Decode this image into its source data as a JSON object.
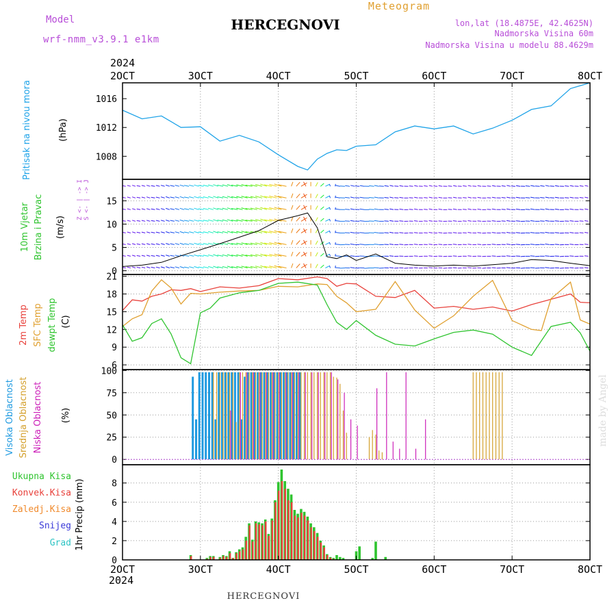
{
  "header": {
    "title": "HERCEGNOVI",
    "subtitle": "Meteogram",
    "model_label": "Model",
    "model_value": "wrf-nmm_v3.9.1 e1km",
    "location": "lon,lat (18.4875E, 42.4625N)",
    "altitude": "Nadmorska Visina 60m",
    "model_altitude": "Nadmorska Visina u modelu 88.4629m",
    "footer_title": "HERCEGNOVI",
    "watermark": "made by Angel"
  },
  "colors": {
    "pressure": "#1fa3e8",
    "temp2m": "#e8413b",
    "sfc": "#e0a030",
    "dew": "#2fc42f",
    "high": "#1f9ae0",
    "mid": "#d4a02c",
    "low": "#cc1fb8",
    "total": "#2fc42f",
    "conv": "#e8413b",
    "freezing": "#f08a2c",
    "snow": "#3a3ad8",
    "grad": "#2ec4c4",
    "purple": "#b84ed8"
  },
  "chart_data": [
    {
      "type": "line",
      "title": "Pritisak na nivou mora",
      "ylabel": "(hPa)",
      "ylim": [
        1004.8,
        1018.2
      ],
      "yticks": [
        1008,
        1012,
        1016
      ],
      "x_start": "2024-10-02T00",
      "x_end": "2024-10-08T00",
      "x_ticks": [
        "2OCT",
        "3OCT",
        "4OCT",
        "5OCT",
        "6OCT",
        "7OCT",
        "8OCT"
      ],
      "x_year": "2024",
      "series": [
        {
          "name": "Pritisak na nivou mora",
          "x_hours": [
            0,
            6,
            12,
            18,
            24,
            30,
            36,
            42,
            48,
            54,
            57,
            60,
            63,
            66,
            69,
            72,
            78,
            84,
            90,
            96,
            102,
            108,
            114,
            120,
            126,
            132,
            138,
            144
          ],
          "values": [
            1014.4,
            1013.2,
            1013.6,
            1012.0,
            1012.1,
            1010.1,
            1010.9,
            1010.0,
            1008.2,
            1006.6,
            1006.1,
            1007.6,
            1008.4,
            1008.9,
            1008.8,
            1009.4,
            1009.6,
            1011.4,
            1012.2,
            1011.8,
            1012.2,
            1011.1,
            1011.9,
            1013.0,
            1014.5,
            1015.0,
            1017.4,
            1018.2
          ]
        }
      ]
    },
    {
      "type": "line",
      "title": "10m Vjetar Brzina i Pravac",
      "ylabel": "(m/s)",
      "ylim": [
        -0.8,
        19.6
      ],
      "yticks": [
        0,
        5,
        10,
        15
      ],
      "direction_key": [
        "Z",
        "<-",
        "|",
        "->",
        "I"
      ],
      "direction_key_2": [
        "S",
        "<-",
        "|",
        "->",
        "J"
      ],
      "series": [
        {
          "name": "10m Vjetar Brzina",
          "x_hours": [
            0,
            6,
            12,
            18,
            24,
            30,
            36,
            42,
            48,
            54,
            57,
            60,
            63,
            66,
            69,
            72,
            78,
            84,
            90,
            96,
            102,
            108,
            114,
            120,
            126,
            132,
            138,
            144
          ],
          "values": [
            0.9,
            1.2,
            1.8,
            3.2,
            4.5,
            5.8,
            7.2,
            8.6,
            10.8,
            11.8,
            12.4,
            9.2,
            3.0,
            2.6,
            3.4,
            2.2,
            3.6,
            1.6,
            1.2,
            1.0,
            1.2,
            1.0,
            1.3,
            1.6,
            2.4,
            2.2,
            1.6,
            1.1
          ]
        }
      ]
    },
    {
      "type": "line",
      "title": "2m Temp / SFC Temp / dewpt Temp",
      "ylabel": "(C)",
      "ylim": [
        5.2,
        21.3
      ],
      "yticks": [
        6,
        9,
        12,
        15,
        18,
        21
      ],
      "series": [
        {
          "name": "2m Temp",
          "x_hours": [
            0,
            3,
            6,
            9,
            12,
            15,
            18,
            21,
            24,
            30,
            36,
            42,
            48,
            54,
            60,
            63,
            66,
            69,
            72,
            78,
            84,
            90,
            96,
            102,
            108,
            114,
            120,
            126,
            132,
            138,
            141,
            144
          ],
          "values": [
            15.2,
            17.0,
            16.8,
            17.6,
            18.0,
            18.7,
            18.6,
            18.9,
            18.4,
            19.2,
            19.0,
            19.4,
            20.6,
            20.4,
            20.9,
            20.6,
            19.3,
            19.8,
            19.7,
            17.6,
            17.4,
            18.6,
            15.6,
            15.9,
            15.4,
            15.8,
            15.1,
            16.2,
            17.1,
            18.0,
            16.6,
            16.5
          ]
        },
        {
          "name": "SFC Temp",
          "x_hours": [
            0,
            3,
            6,
            9,
            12,
            15,
            18,
            21,
            24,
            30,
            36,
            42,
            48,
            54,
            60,
            63,
            66,
            69,
            72,
            78,
            84,
            90,
            96,
            102,
            108,
            114,
            120,
            126,
            129,
            132,
            138,
            141,
            144
          ],
          "values": [
            12.5,
            13.8,
            14.5,
            18.5,
            20.4,
            19.0,
            16.3,
            18.1,
            18.0,
            18.3,
            18.5,
            18.6,
            19.3,
            19.2,
            19.7,
            19.6,
            17.6,
            16.5,
            15.0,
            15.4,
            20.1,
            15.3,
            12.2,
            14.3,
            17.6,
            20.3,
            13.5,
            12.0,
            11.8,
            17.2,
            20.0,
            13.6,
            12.9
          ]
        },
        {
          "name": "dewpt Temp",
          "x_hours": [
            0,
            3,
            6,
            9,
            12,
            15,
            18,
            21,
            24,
            27,
            30,
            36,
            42,
            48,
            54,
            60,
            63,
            66,
            69,
            72,
            78,
            84,
            90,
            96,
            102,
            108,
            114,
            120,
            126,
            132,
            138,
            141,
            144
          ],
          "values": [
            12.8,
            10.0,
            10.6,
            13.0,
            13.8,
            11.2,
            7.2,
            6.2,
            14.8,
            15.6,
            17.3,
            18.2,
            18.6,
            19.8,
            20.0,
            19.5,
            16.2,
            13.2,
            12.0,
            13.5,
            11.0,
            9.5,
            9.2,
            10.4,
            11.5,
            11.9,
            11.2,
            9.0,
            7.6,
            12.5,
            13.2,
            11.4,
            8.3
          ]
        }
      ]
    },
    {
      "type": "bar",
      "title": "Visoka / Srednja / Niska Oblacnost",
      "ylabel": "(%)",
      "ylim": [
        -6,
        101
      ],
      "yticks": [
        0,
        25,
        50,
        75,
        100
      ],
      "series": [
        {
          "name": "Visoka Oblacnost",
          "x_hours": [
            22,
            23,
            24,
            25,
            26,
            27,
            28,
            29,
            30,
            31,
            32,
            33,
            34,
            35,
            36,
            37,
            38,
            39,
            40,
            41,
            42,
            43,
            44,
            45,
            46,
            47,
            48,
            49,
            50,
            51,
            52,
            53,
            54,
            55
          ],
          "values": [
            93,
            45,
            98,
            98,
            98,
            98,
            98,
            45,
            98,
            98,
            98,
            98,
            98,
            98,
            98,
            45,
            93,
            98,
            98,
            98,
            98,
            98,
            98,
            98,
            98,
            98,
            98,
            98,
            98,
            98,
            98,
            98,
            98,
            98
          ]
        },
        {
          "name": "Srednja Oblacnost",
          "x_hours": [
            28,
            29,
            30,
            31,
            32,
            33,
            34,
            35,
            36,
            37,
            38,
            39,
            40,
            41,
            42,
            43,
            44,
            45,
            46,
            47,
            48,
            49,
            50,
            51,
            52,
            53,
            54,
            55,
            56,
            57,
            58,
            59,
            60,
            61,
            62,
            63,
            64,
            65,
            66,
            67,
            68,
            69,
            76,
            77,
            78,
            79,
            80,
            108,
            109,
            110,
            111,
            112,
            113,
            114,
            115,
            116,
            117
          ],
          "values": [
            98,
            98,
            98,
            98,
            98,
            98,
            98,
            42,
            98,
            98,
            98,
            98,
            98,
            98,
            98,
            98,
            98,
            98,
            98,
            98,
            98,
            98,
            98,
            98,
            98,
            98,
            98,
            98,
            98,
            98,
            98,
            98,
            98,
            98,
            98,
            98,
            98,
            93,
            92,
            85,
            55,
            30,
            25,
            33,
            28,
            10,
            8,
            98,
            98,
            98,
            98,
            98,
            98,
            98,
            98,
            98,
            98
          ]
        },
        {
          "name": "Niska Oblacnost",
          "x_hours": [
            33,
            36,
            38,
            40,
            42,
            44,
            46,
            48,
            50,
            52,
            54,
            56,
            58,
            60,
            62,
            64,
            66,
            68,
            70,
            72,
            78,
            81,
            83,
            85,
            87,
            90,
            93
          ],
          "values": [
            55,
            98,
            98,
            98,
            98,
            98,
            98,
            98,
            98,
            98,
            98,
            98,
            98,
            98,
            98,
            98,
            90,
            75,
            45,
            38,
            80,
            98,
            20,
            12,
            98,
            12,
            45
          ]
        }
      ]
    },
    {
      "type": "bar",
      "title": "1hr Precip",
      "ylabel": "1hr Precip (mm)",
      "ylim": [
        0,
        9.9
      ],
      "yticks": [
        0,
        2,
        4,
        6,
        8
      ],
      "series": [
        {
          "name": "Ukupna Kisa",
          "x_hours": [
            21,
            26,
            27,
            28,
            30,
            31,
            32,
            33,
            34,
            35,
            36,
            37,
            38,
            39,
            40,
            41,
            42,
            43,
            44,
            45,
            46,
            47,
            48,
            49,
            50,
            51,
            52,
            53,
            54,
            55,
            56,
            57,
            58,
            59,
            60,
            61,
            62,
            63,
            64,
            65,
            66,
            67,
            68,
            72,
            73,
            77,
            78,
            81
          ],
          "values": [
            0.5,
            0.2,
            0.4,
            0.4,
            0.3,
            0.5,
            0.4,
            0.9,
            0.2,
            0.8,
            1.1,
            1.3,
            2.4,
            3.8,
            2.1,
            4.0,
            3.9,
            3.8,
            4.2,
            2.7,
            4.3,
            6.2,
            8.1,
            9.4,
            8.2,
            7.4,
            6.8,
            5.2,
            4.8,
            5.3,
            5.0,
            4.5,
            3.8,
            3.4,
            2.8,
            2.0,
            1.5,
            0.6,
            0.3,
            0.2,
            0.5,
            0.3,
            0.2,
            0.9,
            1.4,
            0.2,
            1.9,
            0.3
          ]
        },
        {
          "name": "Konvek.Kisa",
          "x_hours": [
            21,
            26,
            27,
            28,
            30,
            31,
            32,
            33,
            34,
            35,
            36,
            37,
            38,
            39,
            40,
            41,
            42,
            43,
            44,
            45,
            46,
            47,
            48,
            49,
            50,
            51,
            52,
            53,
            54,
            55,
            56,
            57,
            58,
            59,
            60,
            61,
            62,
            63,
            64,
            65
          ],
          "values": [
            0.4,
            0.1,
            0.3,
            0.3,
            0.2,
            0.4,
            0.3,
            0.7,
            0.2,
            0.7,
            0.9,
            1.1,
            2.0,
            3.6,
            1.9,
            3.8,
            3.7,
            3.6,
            4.0,
            2.5,
            4.1,
            6.0,
            7.2,
            8.2,
            7.4,
            6.2,
            6.0,
            4.6,
            4.4,
            4.9,
            4.6,
            4.1,
            3.4,
            3.0,
            2.4,
            1.8,
            1.3,
            0.5,
            0.2,
            0.1
          ]
        },
        {
          "name": "Zaledj.Kisa",
          "x_hours": [],
          "values": []
        },
        {
          "name": "Snijeg",
          "x_hours": [],
          "values": []
        },
        {
          "name": "Grad",
          "x_hours": [],
          "values": []
        }
      ]
    }
  ]
}
